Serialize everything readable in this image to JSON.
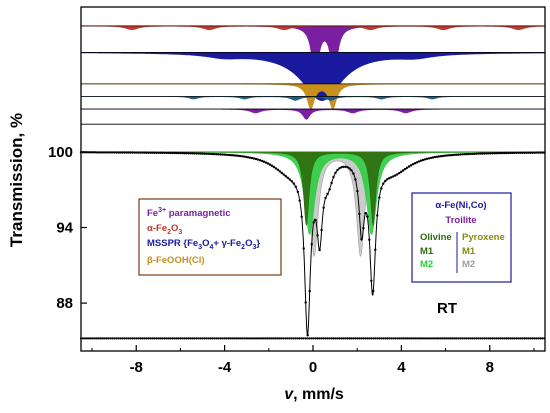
{
  "chart_data": {
    "type": "line",
    "title": "",
    "xlabel": {
      "italic": "v",
      "rest": ", mm/s"
    },
    "ylabel": "Transmission, %",
    "xlim": [
      -10.5,
      10.5
    ],
    "ylim": [
      84.2,
      111.5
    ],
    "x_ticks": [
      -8,
      -4,
      0,
      4,
      8
    ],
    "y_ticks": [
      88,
      94,
      100
    ],
    "annotation": "RT",
    "legend_left": [
      {
        "base": "Fe",
        "sup": "3+",
        "rest": " paramagnetic",
        "color": "#7a1fa2"
      },
      {
        "base": "α-Fe",
        "sub": "2",
        "mid": "O",
        "sub2": "3",
        "color": "#c0392b"
      },
      {
        "parts": [
          "MSSPR  {Fe",
          "3",
          "O",
          "4",
          "+ γ-Fe",
          "2",
          "O",
          "3",
          "}"
        ],
        "color": "#1a1a9e"
      },
      {
        "base": "β-FeOOH(Cl)",
        "color": "#c8901c"
      }
    ],
    "legend_right": {
      "line1": "α-Fe(Ni,Co)",
      "line2": "Troilite",
      "olivine": "Olivine",
      "pyroxene": "Pyroxene",
      "olivine_m1": "M1",
      "olivine_m2": "M2",
      "pyroxene_m1": "M1",
      "pyroxene_m2": "M2",
      "color_line1": "#1a1a9e",
      "color_troilite": "#7a1fa2",
      "color_olivine": "#2e6b0e",
      "color_pyroxene": "#8a8a14",
      "color_olivine_m2": "#2ecc40",
      "color_pyroxene_m2": "#a0a0a0"
    },
    "series": [
      {
        "key": "main",
        "color": "#000000",
        "baseline": 100.0,
        "lines": [
          {
            "center": -0.25,
            "depth": 13.0,
            "width": 0.32
          },
          {
            "center": 0.3,
            "depth": 5.6,
            "width": 0.3
          },
          {
            "center": 2.7,
            "depth": 10.0,
            "width": 0.32
          },
          {
            "center": 2.2,
            "depth": 5.3,
            "width": 0.28
          },
          {
            "center": 0.7,
            "depth": 1.5,
            "width": 0.5
          },
          {
            "center": -1.0,
            "depth": 1.5,
            "width": 2.0
          },
          {
            "center": 3.6,
            "depth": 1.5,
            "width": 2.0
          }
        ]
      },
      {
        "key": "olivine_m1",
        "color": "#2e6b0e",
        "baseline": 100.0,
        "lines": [
          {
            "center": -0.3,
            "depth": 5.8,
            "width": 0.3
          },
          {
            "center": 2.72,
            "depth": 5.8,
            "width": 0.3
          }
        ]
      },
      {
        "key": "olivine_m2",
        "color": "#2ecc40",
        "baseline": 100.0,
        "lines": [
          {
            "center": -0.15,
            "depth": 6.5,
            "width": 0.55
          },
          {
            "center": 2.65,
            "depth": 6.5,
            "width": 0.55
          }
        ]
      },
      {
        "key": "pyroxene",
        "color": "#a0a0a0",
        "baseline": 100.0,
        "lines": [
          {
            "center": 0.05,
            "depth": 8.2,
            "width": 0.45
          },
          {
            "center": 2.15,
            "depth": 8.2,
            "width": 0.45
          }
        ]
      },
      {
        "key": "offset_bg",
        "color": "#000000",
        "baseline": 85.2,
        "lines": []
      }
    ],
    "stacked_components": [
      {
        "key": "paramagnetic",
        "color": "#7a1fa2",
        "baseline": 110.0,
        "lines": [
          {
            "center": 0.1,
            "depth": 4.2,
            "width": 0.35
          },
          {
            "center": 0.95,
            "depth": 4.2,
            "width": 0.35
          }
        ]
      },
      {
        "key": "hematite",
        "color": "#c0392b",
        "baseline": 110.0,
        "lines": [
          {
            "center": -8.2,
            "depth": 0.3,
            "width": 0.7
          },
          {
            "center": -4.7,
            "depth": 0.3,
            "width": 0.7
          },
          {
            "center": -1.3,
            "depth": 0.3,
            "width": 0.7
          },
          {
            "center": 2.6,
            "depth": 0.3,
            "width": 0.7
          },
          {
            "center": 5.9,
            "depth": 0.3,
            "width": 0.7
          },
          {
            "center": 9.3,
            "depth": 0.3,
            "width": 0.7
          }
        ]
      },
      {
        "key": "msspr",
        "color": "#1a1a9e",
        "baseline": 107.9,
        "lines": [
          {
            "center": 0.4,
            "depth": 3.8,
            "width": 2.2
          },
          {
            "center": -4,
            "depth": 0.3,
            "width": 2.0
          },
          {
            "center": 4.6,
            "depth": 0.3,
            "width": 2.0
          }
        ]
      },
      {
        "key": "feooh",
        "color": "#c8901c",
        "baseline": 105.4,
        "lines": [
          {
            "center": -0.1,
            "depth": 1.9,
            "width": 0.42
          },
          {
            "center": 0.9,
            "depth": 1.9,
            "width": 0.42
          }
        ]
      },
      {
        "key": "alpha_fe",
        "color": "#1a5f8a",
        "baseline": 104.4,
        "lines": [
          {
            "center": -5.4,
            "depth": 0.2,
            "width": 0.5
          },
          {
            "center": -3.1,
            "depth": 0.2,
            "width": 0.5
          },
          {
            "center": -0.8,
            "depth": 0.3,
            "width": 0.5
          },
          {
            "center": 0.8,
            "depth": 0.3,
            "width": 0.5
          },
          {
            "center": 3.1,
            "depth": 0.2,
            "width": 0.5
          },
          {
            "center": 5.4,
            "depth": 0.2,
            "width": 0.5
          }
        ]
      },
      {
        "key": "troilite",
        "color": "#7a1fa2",
        "baseline": 103.4,
        "lines": [
          {
            "center": -2.6,
            "depth": 0.3,
            "width": 0.6
          },
          {
            "center": -0.3,
            "depth": 0.8,
            "width": 0.4
          },
          {
            "center": 1.8,
            "depth": 0.3,
            "width": 0.6
          },
          {
            "center": 4.2,
            "depth": 0.3,
            "width": 0.6
          }
        ]
      },
      {
        "key": "ground_line",
        "color": "#000000",
        "baseline": 102.2,
        "lines": []
      }
    ]
  }
}
